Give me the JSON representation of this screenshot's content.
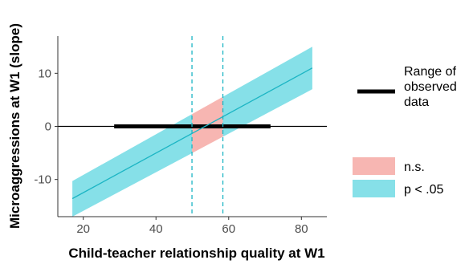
{
  "chart_data": {
    "type": "line",
    "xlabel": "Child-teacher relationship quality at W1",
    "ylabel": "Microaggressions at W1 (slope)",
    "xlim": [
      13,
      87
    ],
    "ylim": [
      -17,
      17
    ],
    "x_ticks": [
      20,
      40,
      60,
      80
    ],
    "y_ticks": [
      -10,
      0,
      10
    ],
    "colors": {
      "line": "#1cb5c4",
      "sig_band": "#86e0e8",
      "ns_band": "#f7b6b2",
      "observed_range": "#000000",
      "dashed": "#1cb5c4",
      "zero_line": "#000000"
    },
    "simple_slope": {
      "x": [
        17,
        83
      ],
      "y": [
        -13.6,
        11.0
      ],
      "ci_lower": [
        -17.0,
        7.0
      ],
      "ci_upper": [
        -10.3,
        15.0
      ]
    },
    "significance_region_bounds": [
      49.9,
      58.4
    ],
    "observed_data_range": [
      28.5,
      71.5
    ],
    "legend": {
      "range_label": "Range of observed data",
      "range_label_lines": [
        "Range of",
        "observed",
        "data"
      ],
      "ns_label": "n.s.",
      "sig_label": "p < .05"
    }
  }
}
